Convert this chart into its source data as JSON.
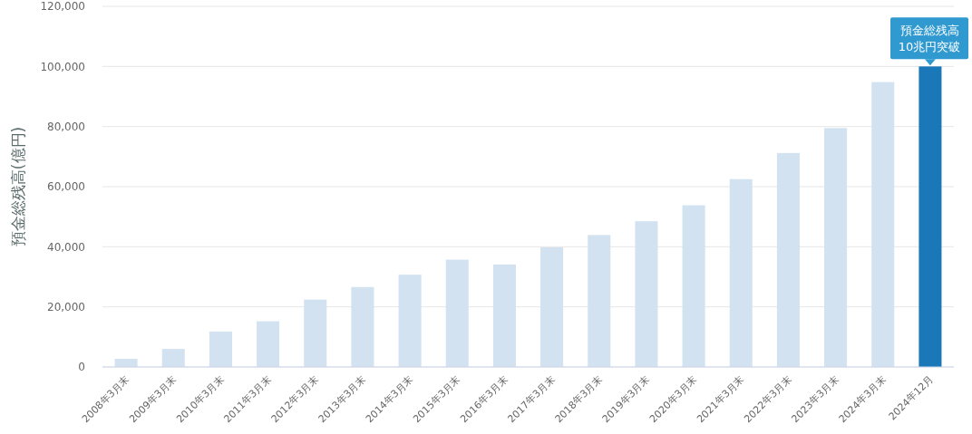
{
  "chart_data": {
    "type": "bar",
    "ylabel": "預金総残高(億円)",
    "categories": [
      "2008年3月末",
      "2009年3月末",
      "2010年3月末",
      "2011年3月末",
      "2012年3月末",
      "2013年3月末",
      "2014年3月末",
      "2015年3月末",
      "2016年3月末",
      "2017年3月末",
      "2018年3月末",
      "2019年3月末",
      "2020年3月末",
      "2021年3月末",
      "2022年3月末",
      "2023年3月末",
      "2024年3月末",
      "2024年12月"
    ],
    "values": [
      2700,
      6000,
      11800,
      15200,
      22400,
      26600,
      30700,
      35700,
      34100,
      39800,
      43900,
      48500,
      53800,
      62500,
      71200,
      79500,
      94800,
      100000
    ],
    "colors": [
      "#d3e2f1",
      "#d3e2f1",
      "#d3e2f1",
      "#d3e2f1",
      "#d3e2f1",
      "#d3e2f1",
      "#d3e2f1",
      "#d3e2f1",
      "#d3e2f1",
      "#d3e2f1",
      "#d3e2f1",
      "#d3e2f1",
      "#d3e2f1",
      "#d3e2f1",
      "#d3e2f1",
      "#d3e2f1",
      "#d3e2f1",
      "#1a78b9"
    ],
    "ylim": [
      0,
      120000
    ],
    "yticks": [
      {
        "value": 0,
        "label": "0"
      },
      {
        "value": 20000,
        "label": "20,000"
      },
      {
        "value": 40000,
        "label": "40,000"
      },
      {
        "value": 60000,
        "label": "60,000"
      },
      {
        "value": 80000,
        "label": "80,000"
      },
      {
        "value": 100000,
        "label": "100,000"
      },
      {
        "value": 120000,
        "label": "120,000"
      }
    ],
    "grid": "y",
    "annotations": [
      {
        "text": "預金総残高\n10兆円突破",
        "x": "2024年12月",
        "y": 100000
      }
    ]
  }
}
